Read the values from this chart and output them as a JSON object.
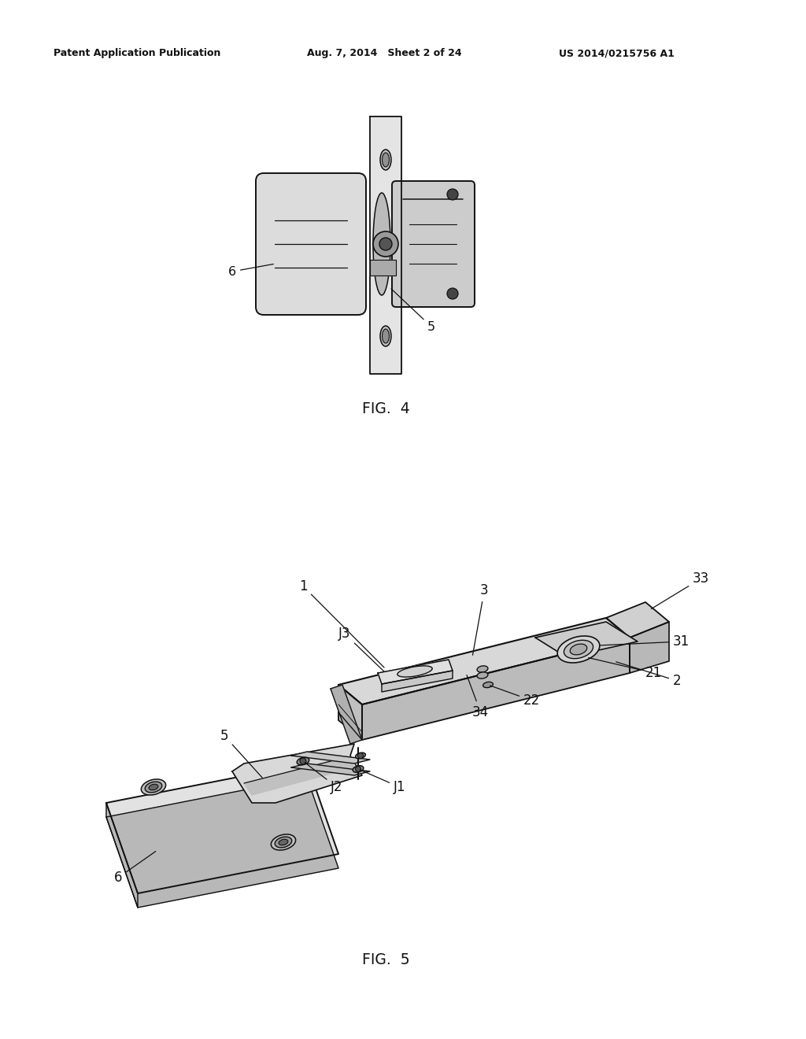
{
  "background_color": "#ffffff",
  "header_left": "Patent Application Publication",
  "header_mid": "Aug. 7, 2014   Sheet 2 of 24",
  "header_right": "US 2014/0215756 A1",
  "fig4_label": "FIG.  4",
  "fig5_label": "FIG.  5",
  "text_color": "#111111",
  "line_color": "#111111",
  "gray_light": "#d8d8d8",
  "gray_mid": "#b8b8b8",
  "gray_dark": "#888888",
  "gray_darker": "#555555"
}
